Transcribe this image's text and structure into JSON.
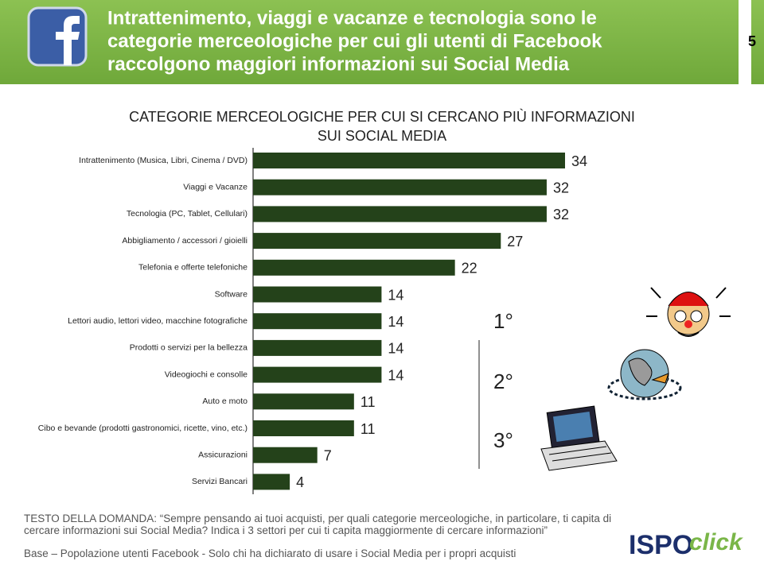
{
  "header": {
    "title_lines": [
      "Intrattenimento, viaggi e vacanze e tecnologia sono le",
      "categorie merceologiche per cui gli utenti di Facebook",
      "raccolgono maggiori informazioni sui Social Media"
    ],
    "page_number": "5"
  },
  "chart_data": {
    "type": "bar",
    "orientation": "horizontal",
    "title": [
      "CATEGORIE MERCEOLOGICHE PER CUI SI CERCANO PIÙ INFORMAZIONI",
      "SUI SOCIAL MEDIA"
    ],
    "categories": [
      "Intrattenimento (Musica, Libri, Cinema / DVD)",
      "Viaggi e Vacanze",
      "Tecnologia (PC, Tablet, Cellulari)",
      "Abbigliamento / accessori / gioielli",
      "Telefonia e offerte telefoniche",
      "Software",
      "Lettori audio, lettori video, macchine fotografiche",
      "Prodotti o servizi per la bellezza",
      "Videogiochi e consolle",
      "Auto e moto",
      "Cibo e bevande (prodotti gastronomici, ricette, vino, etc.)",
      "Assicurazioni",
      "Servizi Bancari"
    ],
    "values": [
      34,
      32,
      32,
      27,
      22,
      14,
      14,
      14,
      14,
      11,
      11,
      7,
      4
    ],
    "color": "#24421a",
    "annotations": [
      "1°",
      "2°",
      "3°"
    ]
  },
  "footer": {
    "question": "TESTO DELLA DOMANDA: “Sempre pensando ai tuoi acquisti, per quali categorie merceologiche, in particolare, ti capita di cercare informazioni sui Social Media? Indica i 3 settori per cui ti capita maggiormente di cercare informazioni”",
    "base": "Base – Popolazione utenti Facebook - Solo chi ha dichiarato di usare i Social Media per i propri acquisti",
    "logo": [
      "ISPO",
      "click"
    ]
  }
}
